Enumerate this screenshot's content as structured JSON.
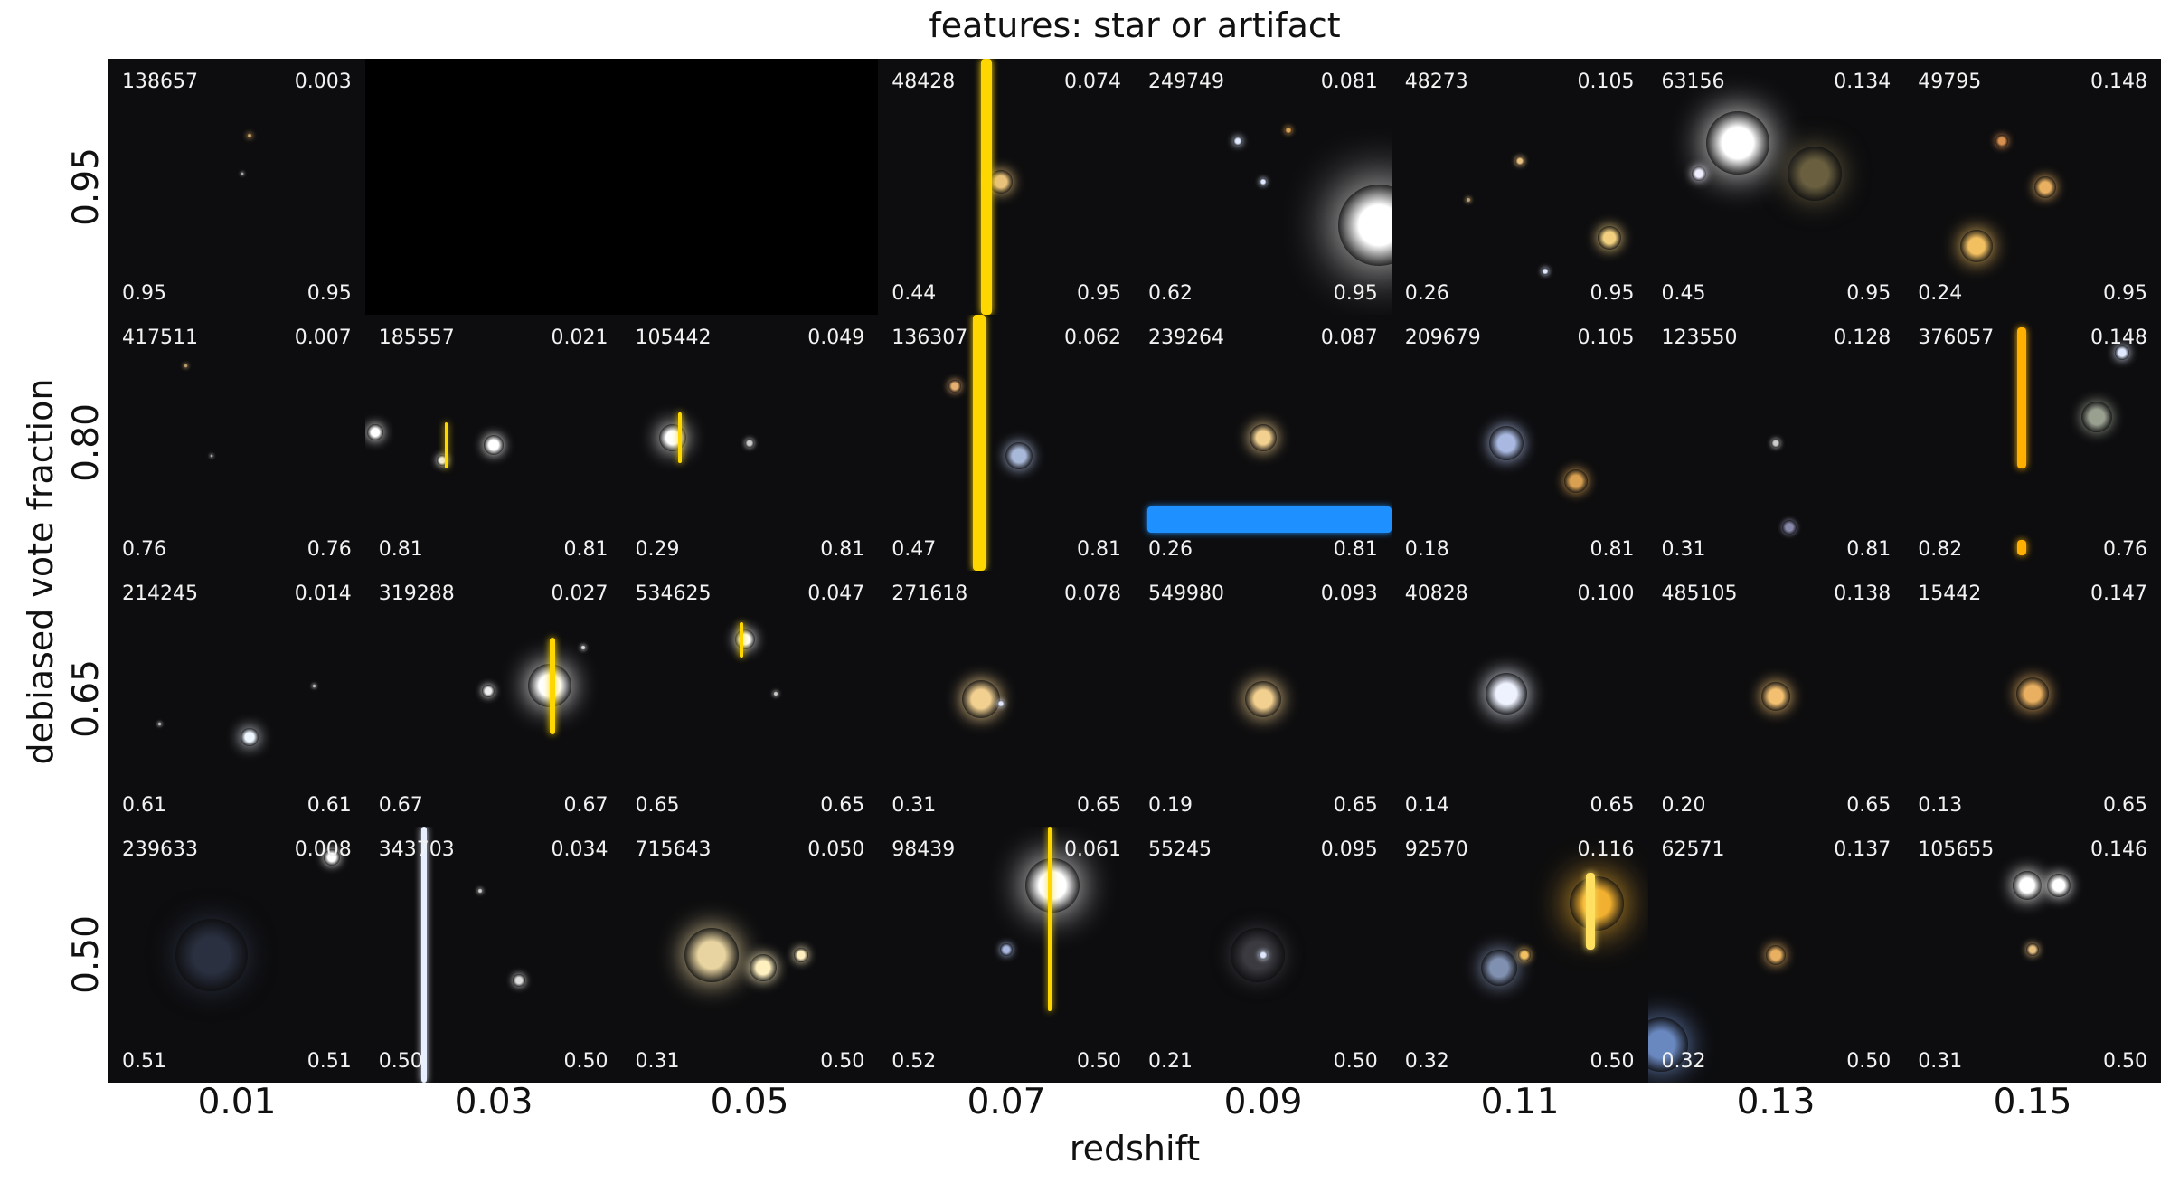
{
  "title": "features: star or artifact",
  "xlabel": "redshift",
  "ylabel": "debiased vote fraction",
  "xticks": [
    "0.01",
    "0.03",
    "0.05",
    "0.07",
    "0.09",
    "0.11",
    "0.13",
    "0.15"
  ],
  "yticks": [
    "0.95",
    "0.80",
    "0.65",
    "0.50"
  ],
  "rows": [
    [
      {
        "id": "138657",
        "z": "0.003",
        "bl": "0.95",
        "br": "0.95"
      },
      null,
      null,
      {
        "id": "48428",
        "z": "0.074",
        "bl": "0.44",
        "br": "0.95"
      },
      {
        "id": "249749",
        "z": "0.081",
        "bl": "0.62",
        "br": "0.95"
      },
      {
        "id": "48273",
        "z": "0.105",
        "bl": "0.26",
        "br": "0.95"
      },
      {
        "id": "63156",
        "z": "0.134",
        "bl": "0.45",
        "br": "0.95"
      },
      {
        "id": "49795",
        "z": "0.148",
        "bl": "0.24",
        "br": "0.95"
      }
    ],
    [
      {
        "id": "417511",
        "z": "0.007",
        "bl": "0.76",
        "br": "0.76"
      },
      {
        "id": "185557",
        "z": "0.021",
        "bl": "0.81",
        "br": "0.81"
      },
      {
        "id": "105442",
        "z": "0.049",
        "bl": "0.29",
        "br": "0.81"
      },
      {
        "id": "136307",
        "z": "0.062",
        "bl": "0.47",
        "br": "0.81"
      },
      {
        "id": "239264",
        "z": "0.087",
        "bl": "0.26",
        "br": "0.81"
      },
      {
        "id": "209679",
        "z": "0.105",
        "bl": "0.18",
        "br": "0.81"
      },
      {
        "id": "123550",
        "z": "0.128",
        "bl": "0.31",
        "br": "0.81"
      },
      {
        "id": "376057",
        "z": "0.148",
        "bl": "0.82",
        "br": "0.76"
      }
    ],
    [
      {
        "id": "214245",
        "z": "0.014",
        "bl": "0.61",
        "br": "0.61"
      },
      {
        "id": "319288",
        "z": "0.027",
        "bl": "0.67",
        "br": "0.67"
      },
      {
        "id": "534625",
        "z": "0.047",
        "bl": "0.65",
        "br": "0.65"
      },
      {
        "id": "271618",
        "z": "0.078",
        "bl": "0.31",
        "br": "0.65"
      },
      {
        "id": "549980",
        "z": "0.093",
        "bl": "0.19",
        "br": "0.65"
      },
      {
        "id": "40828",
        "z": "0.100",
        "bl": "0.14",
        "br": "0.65"
      },
      {
        "id": "485105",
        "z": "0.138",
        "bl": "0.20",
        "br": "0.65"
      },
      {
        "id": "15442",
        "z": "0.147",
        "bl": "0.13",
        "br": "0.65"
      }
    ],
    [
      {
        "id": "239633",
        "z": "0.008",
        "bl": "0.51",
        "br": "0.51"
      },
      {
        "id": "343703",
        "z": "0.034",
        "bl": "0.50",
        "br": "0.50"
      },
      {
        "id": "715643",
        "z": "0.050",
        "bl": "0.31",
        "br": "0.50"
      },
      {
        "id": "98439",
        "z": "0.061",
        "bl": "0.52",
        "br": "0.50"
      },
      {
        "id": "55245",
        "z": "0.095",
        "bl": "0.21",
        "br": "0.50"
      },
      {
        "id": "92570",
        "z": "0.116",
        "bl": "0.32",
        "br": "0.50"
      },
      {
        "id": "62571",
        "z": "0.137",
        "bl": "0.32",
        "br": "0.50"
      },
      {
        "id": "105655",
        "z": "0.146",
        "bl": "0.31",
        "br": "0.50"
      }
    ]
  ]
}
